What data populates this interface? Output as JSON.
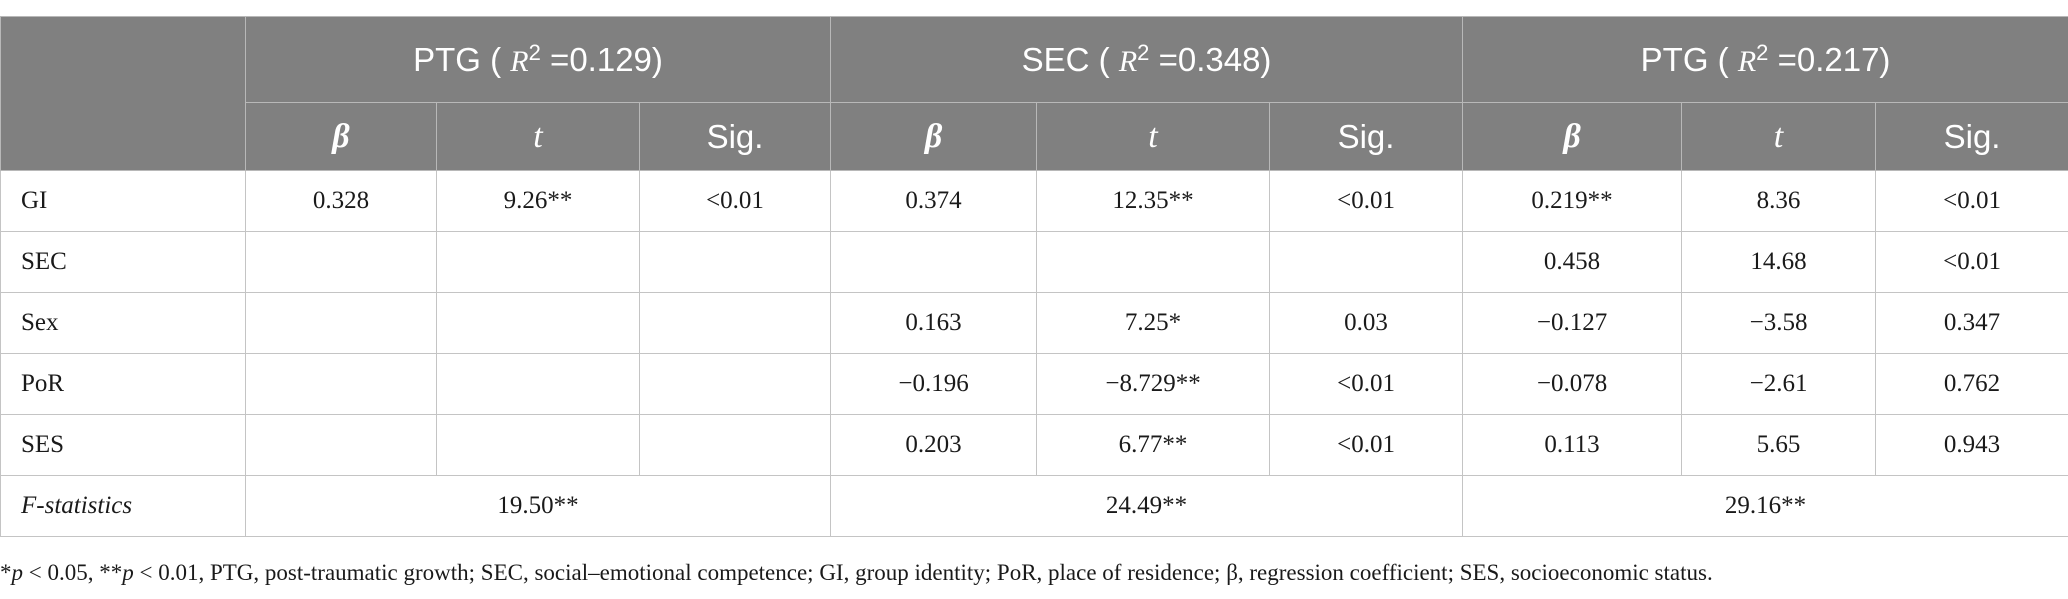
{
  "table": {
    "group_headers": [
      {
        "label": "PTG",
        "r2_symbol": "R",
        "r2_exp": "2",
        "r2_value": "=0.129)"
      },
      {
        "label": "SEC",
        "r2_symbol": "R",
        "r2_exp": "2",
        "r2_value": "=0.348)"
      },
      {
        "label": "PTG",
        "r2_symbol": "R",
        "r2_exp": "2",
        "r2_value": "=0.217)"
      }
    ],
    "sub_headers": [
      "β",
      "t",
      "Sig.",
      "β",
      "t",
      "Sig.",
      "β",
      "t",
      "Sig."
    ],
    "rows": [
      {
        "label": "GI",
        "cells": [
          "0.328",
          "9.26**",
          "<0.01",
          "0.374",
          "12.35**",
          "<0.01",
          "0.219**",
          "8.36",
          "<0.01"
        ]
      },
      {
        "label": "SEC",
        "cells": [
          "",
          "",
          "",
          "",
          "",
          "",
          "0.458",
          "14.68",
          "<0.01"
        ]
      },
      {
        "label": "Sex",
        "cells": [
          "",
          "",
          "",
          "0.163",
          "7.25*",
          "0.03",
          "−0.127",
          "−3.58",
          "0.347"
        ]
      },
      {
        "label": "PoR",
        "cells": [
          "",
          "",
          "",
          "−0.196",
          "−8.729**",
          "<0.01",
          "−0.078",
          "−2.61",
          "0.762"
        ]
      },
      {
        "label": "SES",
        "cells": [
          "",
          "",
          "",
          "0.203",
          "6.77**",
          "<0.01",
          "0.113",
          "5.65",
          "0.943"
        ]
      }
    ],
    "fstat": {
      "label": "F-statistics",
      "values": [
        "19.50**",
        "24.49**",
        "29.16**"
      ]
    }
  },
  "footnote": {
    "star1": "*",
    "p1": "p",
    "txt1": " < 0.05, **",
    "p2": "p",
    "txt2": " < 0.01, PTG, post-traumatic growth; SEC, social–emotional competence; GI, group identity; PoR, place of residence; β, regression coefficient; SES, socioeconomic status."
  }
}
